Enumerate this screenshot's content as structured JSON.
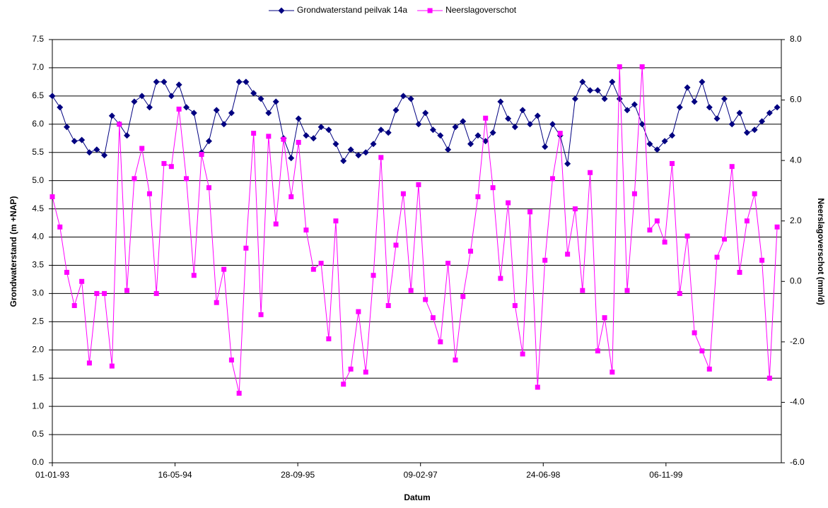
{
  "chart_data": {
    "type": "line",
    "x_label": "Datum",
    "y_label": "Grondwaterstand (m +NAP)",
    "y2_label": "Neerslagoverschot (mm/d)",
    "x": [
      "01-01-93",
      "01-02-93",
      "01-03-93",
      "01-04-93",
      "01-05-93",
      "01-06-93",
      "01-07-93",
      "01-08-93",
      "01-09-93",
      "01-10-93",
      "01-11-93",
      "01-12-93",
      "01-01-94",
      "01-02-94",
      "01-03-94",
      "01-04-94",
      "01-05-94",
      "01-06-94",
      "01-07-94",
      "01-08-94",
      "01-09-94",
      "01-10-94",
      "01-11-94",
      "01-12-94",
      "01-01-95",
      "01-02-95",
      "01-03-95",
      "01-04-95",
      "01-05-95",
      "01-06-95",
      "01-07-95",
      "01-08-95",
      "01-09-95",
      "01-10-95",
      "01-11-95",
      "01-12-95",
      "01-01-96",
      "01-02-96",
      "01-03-96",
      "01-04-96",
      "01-05-96",
      "01-06-96",
      "01-07-96",
      "01-08-96",
      "01-09-96",
      "01-10-96",
      "01-11-96",
      "01-12-96",
      "01-01-97",
      "01-02-97",
      "01-03-97",
      "01-04-97",
      "01-05-97",
      "01-06-97",
      "01-07-97",
      "01-08-97",
      "01-09-97",
      "01-10-97",
      "01-11-97",
      "01-12-97",
      "01-01-98",
      "01-02-98",
      "01-03-98",
      "01-04-98",
      "01-05-98",
      "01-06-98",
      "01-07-98",
      "01-08-98",
      "01-09-98",
      "01-10-98",
      "01-11-98",
      "01-12-98",
      "01-01-99",
      "01-02-99",
      "01-03-99",
      "01-04-99",
      "01-05-99",
      "01-06-99",
      "01-07-99",
      "01-08-99",
      "01-09-99",
      "01-10-99",
      "01-11-99",
      "01-12-99",
      "01-01-00",
      "01-02-00",
      "01-03-00",
      "01-04-00",
      "01-05-00",
      "01-06-00",
      "01-07-00",
      "01-08-00",
      "01-09-00",
      "01-10-00",
      "01-11-00",
      "01-12-00",
      "01-01-01",
      "01-02-01"
    ],
    "xlim": [
      "01-01-93",
      "18-02-01"
    ],
    "xticks": [
      "01-01-93",
      "16-05-94",
      "28-09-95",
      "09-02-97",
      "24-06-98",
      "06-11-99"
    ],
    "ylim": [
      0,
      7.5
    ],
    "yticks": [
      {
        "value": 0,
        "label": "0.0"
      },
      0.5,
      {
        "value": 1,
        "label": "1.0"
      },
      1.5,
      {
        "value": 2,
        "label": "2.0"
      },
      2.5,
      {
        "value": 3,
        "label": "3.0"
      },
      3.5,
      {
        "value": 4,
        "label": "4.0"
      },
      4.5,
      {
        "value": 5,
        "label": "5.0"
      },
      5.5,
      {
        "value": 6,
        "label": "6.0"
      },
      6.5,
      {
        "value": 7,
        "label": "7.0"
      },
      7.5
    ],
    "y2lim": [
      -6,
      8
    ],
    "y2ticks": [
      {
        "value": -6,
        "label": "-6.0"
      },
      {
        "value": -4,
        "label": "-4.0"
      },
      {
        "value": -2,
        "label": "-2.0"
      },
      {
        "value": 0,
        "label": "0.0"
      },
      {
        "value": 2,
        "label": "2.0"
      },
      {
        "value": 4,
        "label": "4.0"
      },
      {
        "value": 6,
        "label": "6.0"
      },
      {
        "value": 8,
        "label": "8.0"
      }
    ],
    "grid": true,
    "legend": "top",
    "series": [
      {
        "name": "Grondwaterstand peilvak 14a",
        "color": "#000080",
        "marker": "diamond",
        "values": [
          6.5,
          6.3,
          5.95,
          5.7,
          5.72,
          5.5,
          5.55,
          5.45,
          6.15,
          6.0,
          5.8,
          6.4,
          6.5,
          6.3,
          6.75,
          6.75,
          6.5,
          6.7,
          6.3,
          6.2,
          5.5,
          5.7,
          6.25,
          6.0,
          6.2,
          6.75,
          6.75,
          6.55,
          6.45,
          6.2,
          6.4,
          5.75,
          5.4,
          6.1,
          5.8,
          5.75,
          5.95,
          5.9,
          5.65,
          5.35,
          5.55,
          5.45,
          5.5,
          5.65,
          5.9,
          5.85,
          6.25,
          6.5,
          6.45,
          6.0,
          6.2,
          5.9,
          5.8,
          5.55,
          5.95,
          6.05,
          5.65,
          5.8,
          5.7,
          5.85,
          6.4,
          6.1,
          5.95,
          6.25,
          6.0,
          6.15,
          5.6,
          6.0,
          5.8,
          5.3,
          6.45,
          6.75,
          6.6,
          6.6,
          6.45,
          6.75,
          6.45,
          6.25,
          6.35,
          6.0,
          5.65,
          5.55,
          5.7,
          5.8,
          6.3,
          6.65,
          6.4,
          6.75,
          6.3,
          6.1,
          6.45,
          6.0,
          6.2,
          5.85,
          5.9,
          6.05,
          6.2,
          6.3
        ]
      },
      {
        "name": "Neerslagoverschot",
        "color": "#ff00ff",
        "marker": "square",
        "axis": "y2",
        "values": [
          2.8,
          1.8,
          0.3,
          -0.8,
          0.0,
          -2.7,
          -0.4,
          -0.4,
          -2.8,
          5.2,
          -0.3,
          3.4,
          4.4,
          2.9,
          -0.4,
          3.9,
          3.8,
          5.7,
          3.4,
          0.2,
          4.2,
          3.1,
          -0.7,
          0.4,
          -2.6,
          -3.7,
          1.1,
          4.9,
          -1.1,
          4.8,
          1.9,
          4.7,
          2.8,
          4.6,
          1.7,
          0.4,
          0.6,
          -1.9,
          2.0,
          -3.4,
          -2.9,
          -1.0,
          -3.0,
          0.2,
          4.1,
          -0.8,
          1.2,
          2.9,
          -0.3,
          3.2,
          -0.6,
          -1.2,
          -2.0,
          0.6,
          -2.6,
          -0.5,
          1.0,
          2.8,
          5.4,
          3.1,
          0.1,
          2.6,
          -0.8,
          -2.4,
          2.3,
          -3.5,
          0.7,
          3.4,
          4.9,
          0.9,
          2.4,
          -0.3,
          3.6,
          -2.3,
          -1.2,
          -3.0,
          7.1,
          -0.3,
          2.9,
          7.1,
          1.7,
          2.0,
          1.3,
          3.9,
          -0.4,
          1.5,
          -1.7,
          -2.3,
          -2.9,
          0.8,
          1.4,
          3.8,
          0.3,
          2.0,
          2.9,
          0.7,
          -3.2,
          1.8
        ]
      }
    ]
  }
}
